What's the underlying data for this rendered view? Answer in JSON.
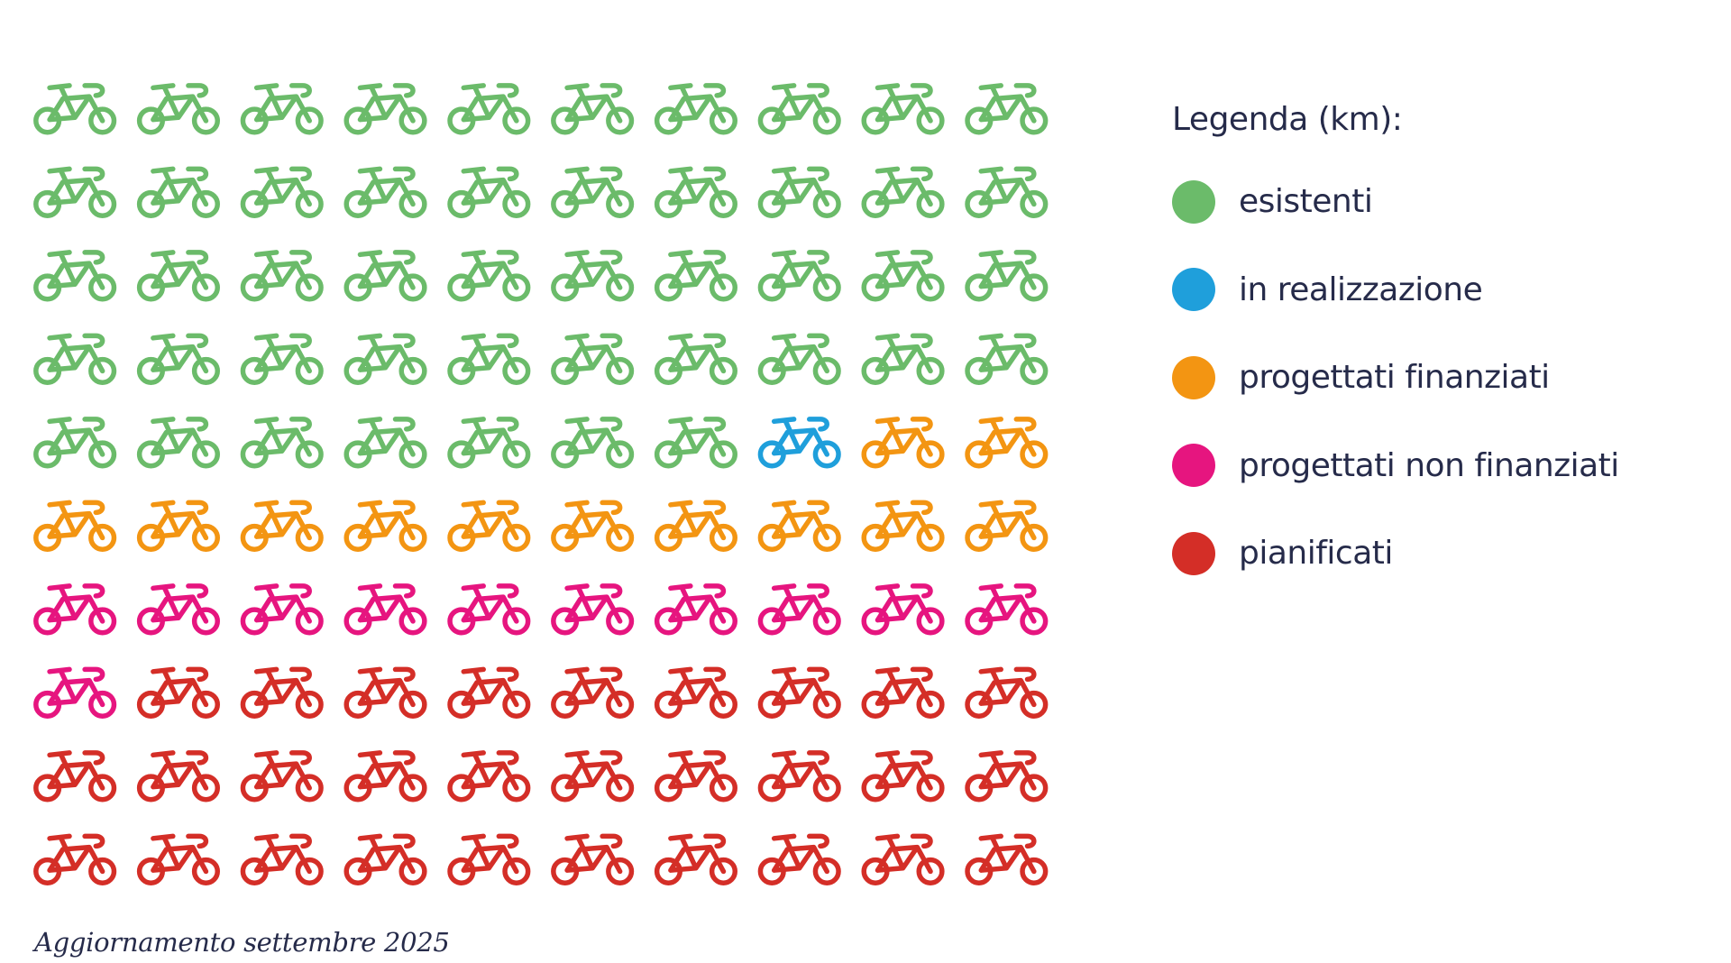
{
  "chart_data": {
    "type": "waffle",
    "title": "",
    "grid": {
      "rows": 10,
      "columns": 10,
      "order": "row-major"
    },
    "icon": "bicycle-icon",
    "categories": [
      "esistenti",
      "in realizzazione",
      "progettati finanziati",
      "progettati non finanziati",
      "pianificati"
    ],
    "values": [
      47,
      1,
      12,
      11,
      29
    ],
    "colors": [
      "#6bbb6a",
      "#1f9fdb",
      "#f39512",
      "#e6157f",
      "#d42e27"
    ],
    "legend": {
      "title": "Legenda (km):",
      "placement": "right"
    }
  },
  "footer": {
    "text": "Aggiornamento settembre 2025"
  }
}
